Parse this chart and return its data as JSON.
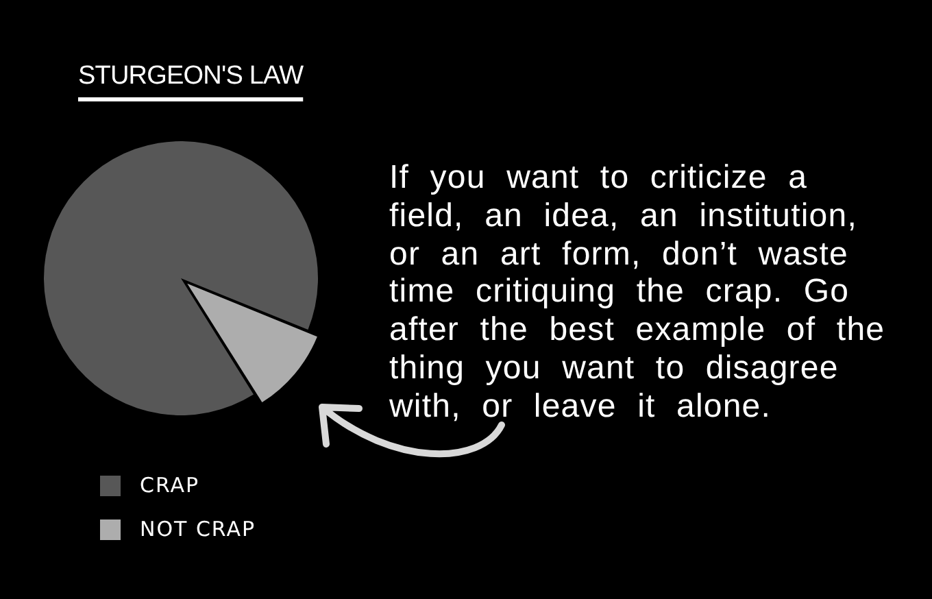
{
  "chart_data": {
    "type": "pie",
    "title": "STURGEON'S LAW",
    "categories": [
      "CRAP",
      "NOT CRAP"
    ],
    "values": [
      90,
      10
    ],
    "colors": [
      "#575757",
      "#adadad"
    ],
    "legend": "bottom left",
    "annotations": [
      "If you want to criticize a\nfield, an idea, an institution,\nor an art form, don’t waste\ntime critiquing the crap. Go\nafter the best example of the\nthing you want to disagree\nwith, or leave it alone."
    ]
  }
}
